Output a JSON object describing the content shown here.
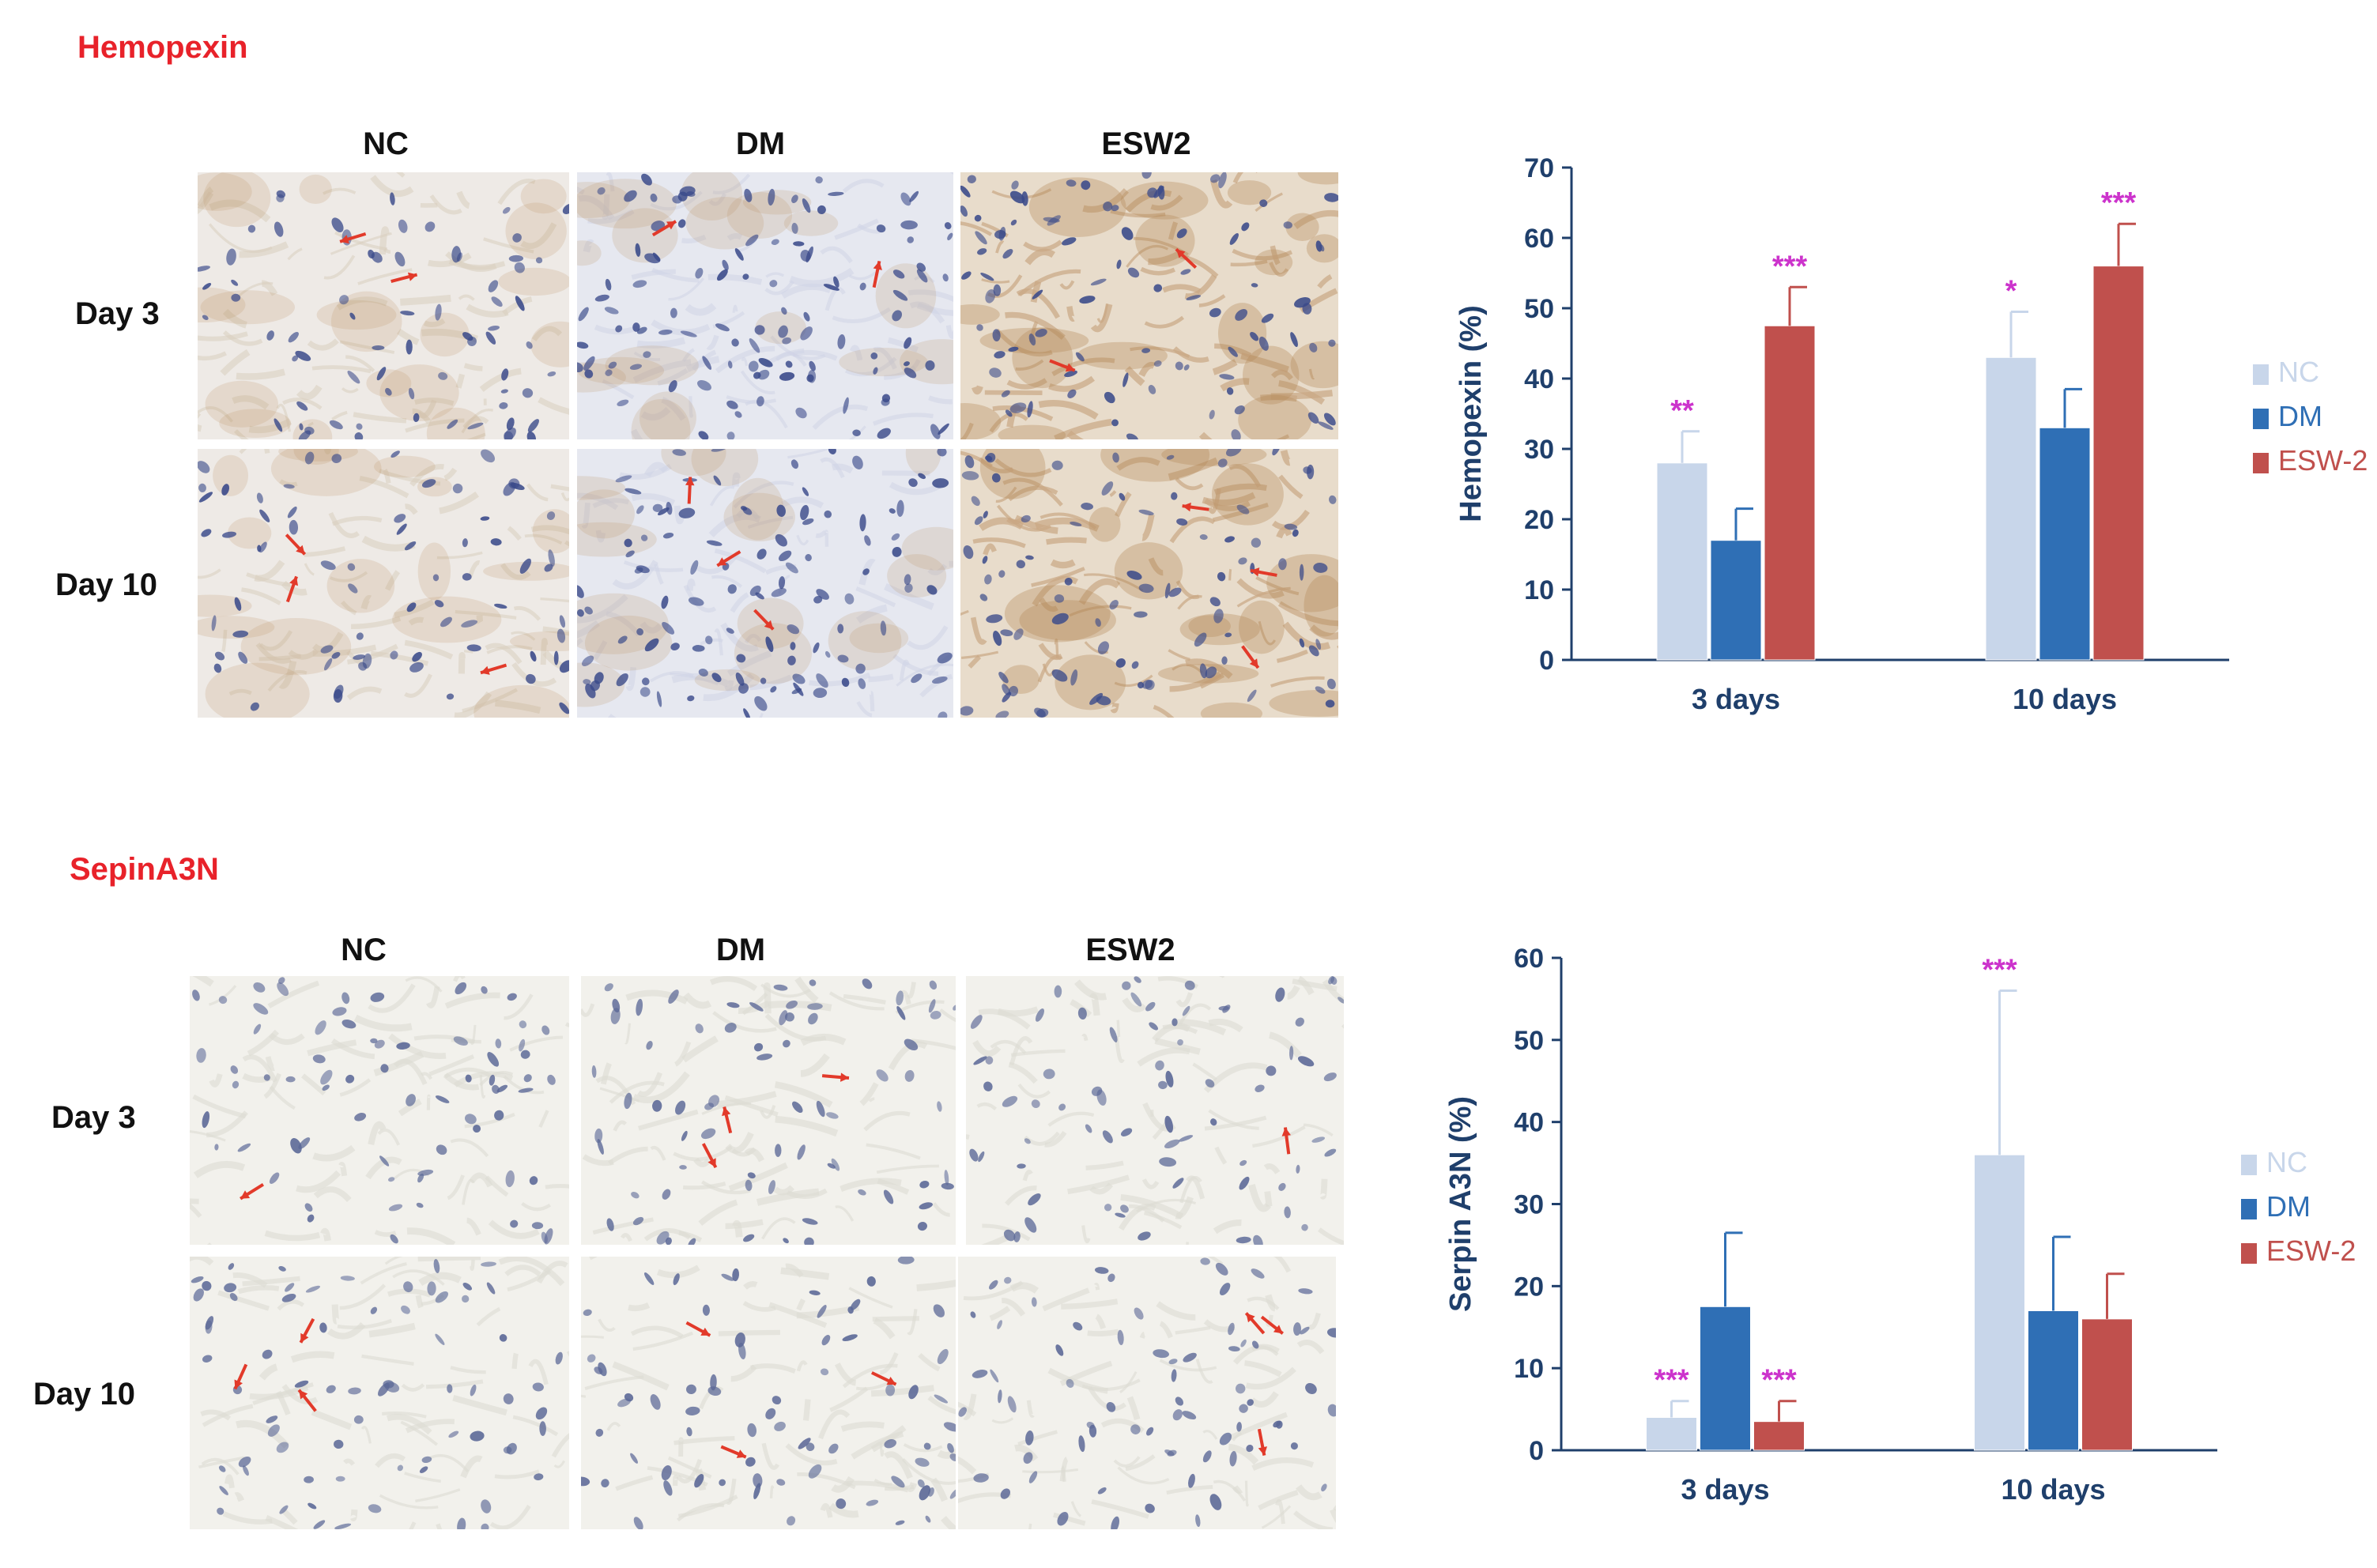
{
  "panels": [
    {
      "title": "Hemopexin",
      "columns": [
        "NC",
        "DM",
        "ESW2"
      ],
      "rows": [
        "Day 3",
        "Day 10"
      ]
    },
    {
      "title": "SepinA3N",
      "columns": [
        "NC",
        "DM",
        "ESW2"
      ],
      "rows": [
        "Day 3",
        "Day 10"
      ]
    }
  ],
  "colors": {
    "title_red": "#e8222a",
    "axis": "#1f3f6b",
    "significance": "#cc33cc",
    "NC": "#c8d6ea",
    "DM": "#2f6fb5",
    "ESW-2": "#c0504d",
    "stain_brown": "#b58a5a",
    "stain_light": "#e9e4dc",
    "nuclei": "#3a4a8a",
    "arrow": "#e23a2a"
  },
  "chart_data": [
    {
      "type": "bar",
      "ylabel": "Hemopexin (%)",
      "xlabel": "",
      "categories": [
        "3 days",
        "10 days"
      ],
      "ylim": [
        0,
        70
      ],
      "yticks": [
        0,
        10,
        20,
        30,
        40,
        50,
        60,
        70
      ],
      "legend_position": "right",
      "series": [
        {
          "name": "NC",
          "values": [
            28,
            43
          ],
          "errors": [
            4.5,
            6.5
          ],
          "significance": [
            "**",
            "*"
          ]
        },
        {
          "name": "DM",
          "values": [
            17,
            33
          ],
          "errors": [
            4.5,
            5.5
          ],
          "significance": [
            "",
            ""
          ]
        },
        {
          "name": "ESW-2",
          "values": [
            47.5,
            56
          ],
          "errors": [
            5.5,
            6
          ],
          "significance": [
            "***",
            "***"
          ]
        }
      ]
    },
    {
      "type": "bar",
      "ylabel": "Serpin A3N (%)",
      "xlabel": "",
      "categories": [
        "3 days",
        "10 days"
      ],
      "ylim": [
        0,
        60
      ],
      "yticks": [
        0,
        10,
        20,
        30,
        40,
        50,
        60
      ],
      "legend_position": "right",
      "series": [
        {
          "name": "NC",
          "values": [
            4,
            36
          ],
          "errors": [
            2,
            20
          ],
          "significance": [
            "***",
            "***"
          ]
        },
        {
          "name": "DM",
          "values": [
            17.5,
            17
          ],
          "errors": [
            9,
            9
          ],
          "significance": [
            "",
            ""
          ]
        },
        {
          "name": "ESW-2",
          "values": [
            3.5,
            16
          ],
          "errors": [
            2.5,
            5.5
          ],
          "significance": [
            "***",
            ""
          ]
        }
      ]
    }
  ]
}
